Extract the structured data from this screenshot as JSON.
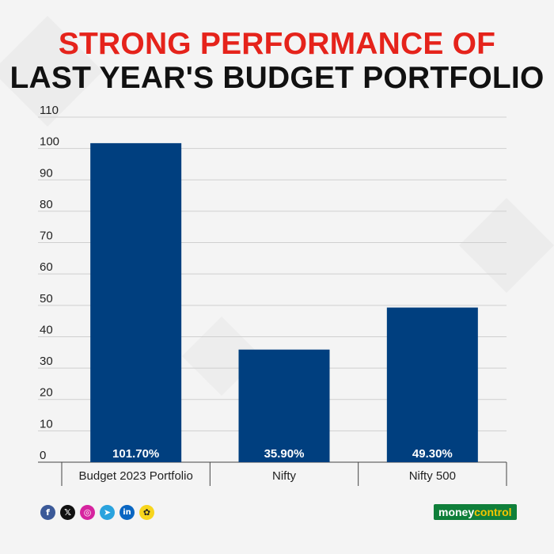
{
  "title": {
    "line1": "STRONG PERFORMANCE OF",
    "line2": "LAST YEAR'S BUDGET PORTFOLIO"
  },
  "colors": {
    "title_accent": "#e5231b",
    "bar": "#003f7f",
    "brand_bg": "#0f7f3a",
    "brand_accent": "#f5c400"
  },
  "chart_data": {
    "type": "bar",
    "categories": [
      "Budget 2023 Portfolio",
      "Nifty",
      "Nifty 500"
    ],
    "values": [
      101.7,
      35.9,
      49.3
    ],
    "data_labels": [
      "101.70%",
      "35.90%",
      "49.30%"
    ],
    "ylim": [
      0,
      110
    ],
    "yticks": [
      0,
      10,
      20,
      30,
      40,
      50,
      60,
      70,
      80,
      90,
      100,
      110
    ],
    "grid": true,
    "xlabel": "",
    "ylabel": ""
  },
  "footer": {
    "social_icons": [
      "facebook-icon",
      "x-icon",
      "instagram-icon",
      "telegram-icon",
      "linkedin-icon",
      "snapchat-icon"
    ],
    "brand_part1": "money",
    "brand_part2": "control"
  }
}
